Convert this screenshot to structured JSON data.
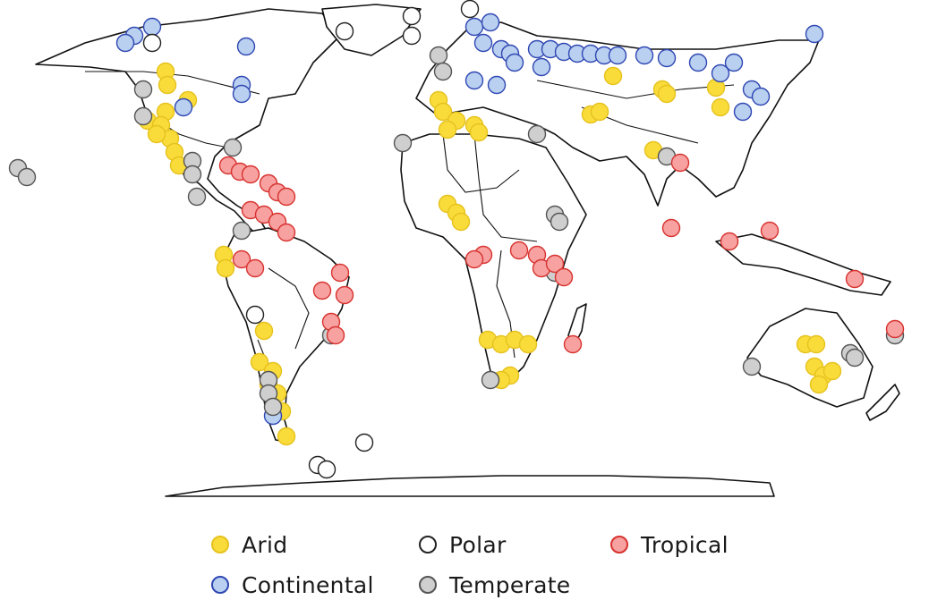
{
  "map": {
    "category_colors": {
      "Arid": {
        "fill": "#f9dc3a",
        "stroke": "#e6c21e"
      },
      "Continental": {
        "fill": "#b9d0f0",
        "stroke": "#2f47b3"
      },
      "Polar": {
        "fill": "#ffffff",
        "stroke": "#222222"
      },
      "Temperate": {
        "fill": "#cfcfcf",
        "stroke": "#555555"
      },
      "Tropical": {
        "fill": "#f7a1a1",
        "stroke": "#d7332f"
      }
    }
  },
  "legend": {
    "items": [
      {
        "label": "Arid",
        "key": "Arid"
      },
      {
        "label": "Polar",
        "key": "Polar"
      },
      {
        "label": "Tropical",
        "key": "Tropical"
      },
      {
        "label": "Continental",
        "key": "Continental"
      },
      {
        "label": "Temperate",
        "key": "Temperate"
      }
    ]
  }
}
